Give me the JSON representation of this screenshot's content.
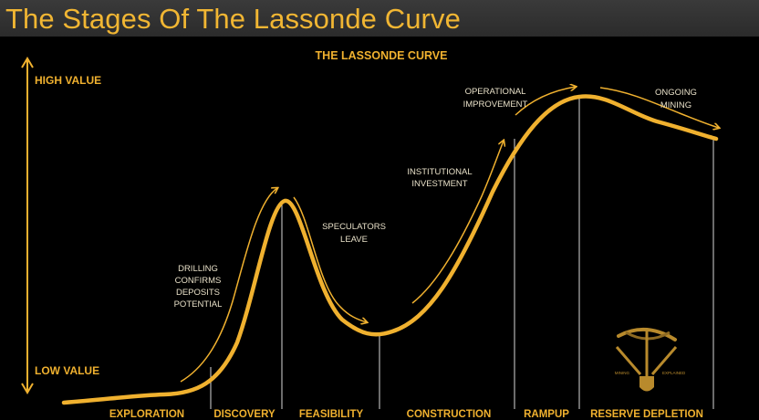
{
  "header": {
    "title": "The Stages Of The Lassonde Curve"
  },
  "diagram": {
    "title": "THE LASSONDE CURVE",
    "axis": {
      "high_label": "HIGH VALUE",
      "low_label": "LOW VALUE"
    },
    "annotations": {
      "drilling": [
        "DRILLING",
        "CONFIRMS",
        "DEPOSITS",
        "POTENTIAL"
      ],
      "speculators": [
        "SPECULATORS",
        "LEAVE"
      ],
      "institutional": [
        "INSTITUTIONAL",
        "INVESTMENT"
      ],
      "operational": [
        "OPERATIONAL",
        "IMPROVEMENT"
      ],
      "ongoing": [
        "ONGOING",
        "MINING"
      ]
    },
    "stages": [
      "EXPLORATION",
      "DISCOVERY",
      "FEASIBILITY",
      "CONSTRUCTION",
      "RAMPUP",
      "RESERVE DEPLETION"
    ],
    "logo": {
      "left": "MINING",
      "right": "EXPLAINED"
    },
    "colors": {
      "accent": "#f0b12f",
      "annotation": "#e8e0c8",
      "background": "#000000"
    }
  }
}
